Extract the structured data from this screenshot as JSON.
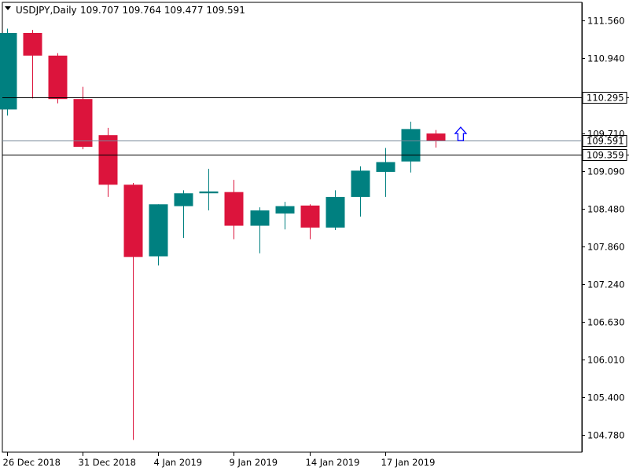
{
  "header": {
    "symbol": "USDJPY,Daily",
    "ohlc": "109.707 109.764 109.477 109.591"
  },
  "chart_data": {
    "type": "candlestick",
    "symbol": "USDJPY",
    "timeframe": "Daily",
    "ylim": [
      104.5,
      111.85
    ],
    "y_ticks": [
      "111.560",
      "110.940",
      "109.710",
      "109.090",
      "108.480",
      "107.860",
      "107.240",
      "106.630",
      "106.010",
      "105.400",
      "104.780"
    ],
    "x_labels": [
      "26 Dec 2018",
      "31 Dec 2018",
      "4 Jan 2019",
      "9 Jan 2019",
      "14 Jan 2019",
      "17 Jan 2019"
    ],
    "x_label_bar_index": [
      0,
      3,
      6,
      9,
      12,
      15
    ],
    "candles": [
      {
        "o": 110.1,
        "h": 111.42,
        "l": 110.0,
        "c": 111.35
      },
      {
        "o": 111.35,
        "h": 111.4,
        "l": 110.28,
        "c": 110.98
      },
      {
        "o": 110.98,
        "h": 111.02,
        "l": 110.2,
        "c": 110.27
      },
      {
        "o": 110.27,
        "h": 110.47,
        "l": 109.45,
        "c": 109.49
      },
      {
        "o": 109.68,
        "h": 109.8,
        "l": 108.67,
        "c": 108.87
      },
      {
        "o": 108.87,
        "h": 108.9,
        "l": 104.7,
        "c": 107.69
      },
      {
        "o": 107.7,
        "h": 108.55,
        "l": 107.55,
        "c": 108.55
      },
      {
        "o": 108.52,
        "h": 108.78,
        "l": 108.0,
        "c": 108.73
      },
      {
        "o": 108.73,
        "h": 109.13,
        "l": 108.45,
        "c": 108.76
      },
      {
        "o": 108.75,
        "h": 108.95,
        "l": 107.98,
        "c": 108.2
      },
      {
        "o": 108.2,
        "h": 108.5,
        "l": 107.75,
        "c": 108.45
      },
      {
        "o": 108.4,
        "h": 108.59,
        "l": 108.14,
        "c": 108.52
      },
      {
        "o": 108.53,
        "h": 108.55,
        "l": 107.98,
        "c": 108.17
      },
      {
        "o": 108.17,
        "h": 108.78,
        "l": 108.13,
        "c": 108.67
      },
      {
        "o": 108.67,
        "h": 109.17,
        "l": 108.35,
        "c": 109.1
      },
      {
        "o": 109.08,
        "h": 109.47,
        "l": 108.67,
        "c": 109.24
      },
      {
        "o": 109.25,
        "h": 109.9,
        "l": 109.07,
        "c": 109.78
      },
      {
        "o": 109.707,
        "h": 109.764,
        "l": 109.477,
        "c": 109.591
      }
    ],
    "colors": {
      "bull": "#008080",
      "bear": "#dc143c",
      "bid_line": "#778899",
      "level_line": "#000000",
      "arrow": "#0000ff"
    },
    "levels": [
      {
        "label": "110.295",
        "value": 110.295
      },
      {
        "label": "109.359",
        "value": 109.359
      }
    ],
    "bid": {
      "label": "109.591",
      "value": 109.591
    },
    "arrow_bar_index": 18
  }
}
